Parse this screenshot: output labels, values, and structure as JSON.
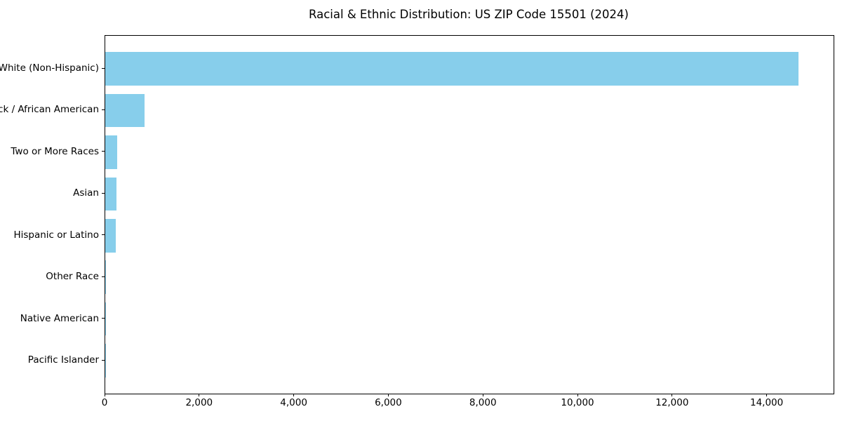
{
  "chart_data": {
    "type": "bar",
    "orientation": "horizontal",
    "title": "Racial & Ethnic Distribution: US ZIP Code 15501 (2024)",
    "categories": [
      "White (Non-Hispanic)",
      "Black / African American",
      "Two or More Races",
      "Asian",
      "Hispanic or Latino",
      "Other Race",
      "Native American",
      "Pacific Islander"
    ],
    "values": [
      14660,
      830,
      255,
      240,
      225,
      20,
      6,
      2
    ],
    "xlabel": "",
    "ylabel": "",
    "xlim": [
      0,
      15400
    ],
    "xticks": [
      0,
      2000,
      4000,
      6000,
      8000,
      10000,
      12000,
      14000
    ],
    "xtick_labels": [
      "0",
      "2,000",
      "4,000",
      "6,000",
      "8,000",
      "10,000",
      "12,000",
      "14,000"
    ],
    "bar_color": "#87CEEB",
    "background_color": "#ffffff",
    "spine_color": "#000000",
    "grid": false,
    "legend": null
  }
}
